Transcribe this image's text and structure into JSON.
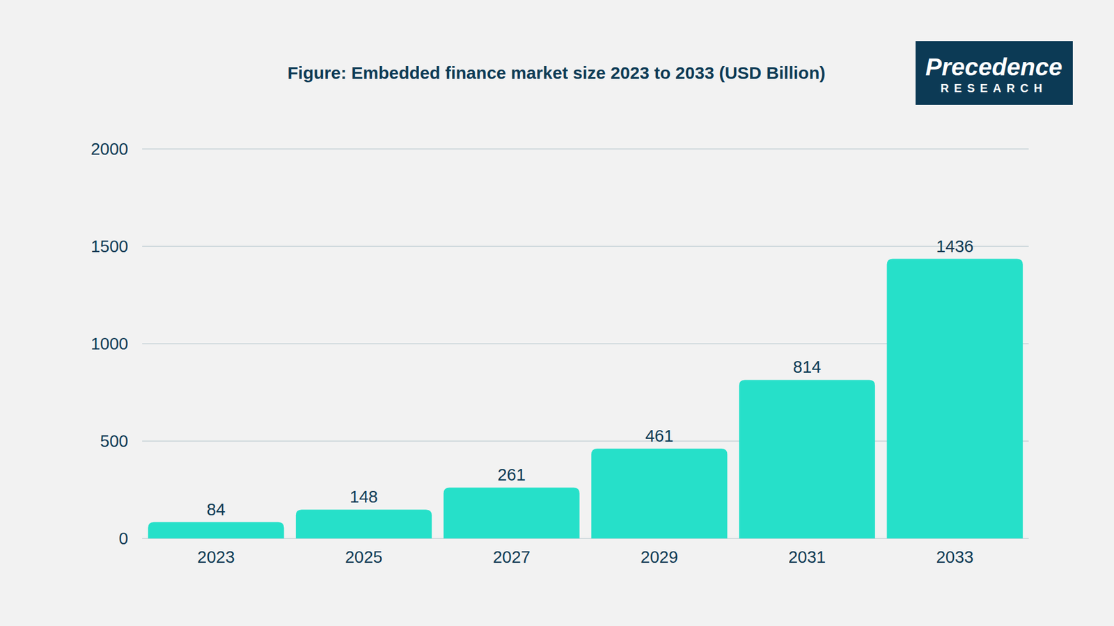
{
  "chart_data": {
    "type": "bar",
    "title": "Figure: Embedded finance market size 2023 to 2033 (USD Billion)",
    "categories": [
      "2023",
      "2025",
      "2027",
      "2029",
      "2031",
      "2033"
    ],
    "values": [
      84,
      148,
      261,
      461,
      814,
      1436
    ],
    "color": "#26e0c9",
    "ylim": [
      0,
      2000
    ],
    "yticks": [
      0,
      500,
      1000,
      1500,
      2000
    ],
    "grid": true,
    "data_labels": true
  },
  "logo": {
    "name": "Precedence",
    "subtitle": "RESEARCH"
  }
}
